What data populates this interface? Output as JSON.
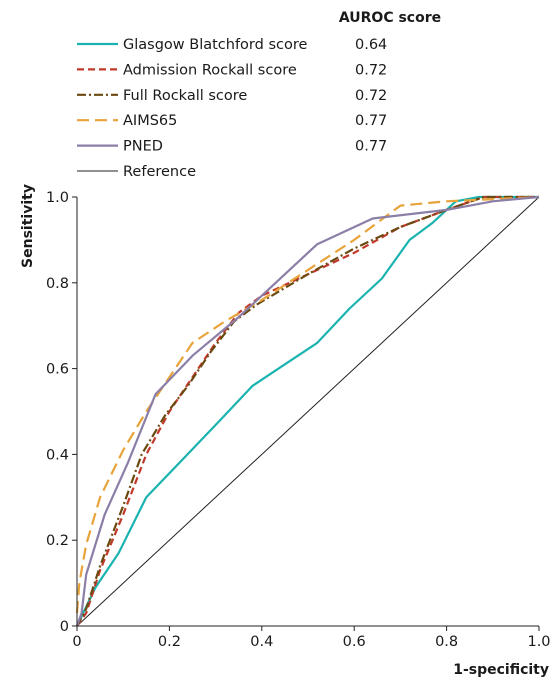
{
  "chart_data": {
    "type": "line",
    "title": "",
    "xlabel": "1-specificity",
    "ylabel": "Sensitivity",
    "xlim": [
      0,
      1.0
    ],
    "ylim": [
      0,
      1.0
    ],
    "x_ticks": [
      "0",
      "0.2",
      "0.4",
      "0.6",
      "0.8",
      "1.0"
    ],
    "y_ticks": [
      "0",
      "0.2",
      "0.4",
      "0.6",
      "0.8",
      "1.0"
    ],
    "grid": false,
    "legend_placement": "top",
    "legend_header": "AUROC score",
    "series": [
      {
        "name": "Glasgow Blatchford score",
        "auroc": "0.64",
        "color": "#1ab3b0",
        "dash": "solid",
        "points": [
          [
            0,
            0
          ],
          [
            0.04,
            0.09
          ],
          [
            0.09,
            0.17
          ],
          [
            0.15,
            0.3
          ],
          [
            0.23,
            0.39
          ],
          [
            0.31,
            0.48
          ],
          [
            0.38,
            0.56
          ],
          [
            0.45,
            0.61
          ],
          [
            0.52,
            0.66
          ],
          [
            0.59,
            0.74
          ],
          [
            0.66,
            0.81
          ],
          [
            0.72,
            0.9
          ],
          [
            0.77,
            0.94
          ],
          [
            0.82,
            0.99
          ],
          [
            0.87,
            1.0
          ],
          [
            1.0,
            1.0
          ]
        ]
      },
      {
        "name": "Admission Rockall score",
        "auroc": "0.72",
        "color": "#c0392b",
        "dash": "dashed",
        "points": [
          [
            0,
            0
          ],
          [
            0.02,
            0.03
          ],
          [
            0.05,
            0.13
          ],
          [
            0.1,
            0.26
          ],
          [
            0.15,
            0.4
          ],
          [
            0.2,
            0.5
          ],
          [
            0.25,
            0.58
          ],
          [
            0.3,
            0.66
          ],
          [
            0.35,
            0.73
          ],
          [
            0.4,
            0.77
          ],
          [
            0.5,
            0.82
          ],
          [
            0.6,
            0.87
          ],
          [
            0.7,
            0.93
          ],
          [
            0.8,
            0.97
          ],
          [
            0.88,
            1.0
          ],
          [
            1.0,
            1.0
          ]
        ]
      },
      {
        "name": "Full Rockall score",
        "auroc": "0.72",
        "color": "#6b4a10",
        "dash": "dashdot",
        "points": [
          [
            0,
            0
          ],
          [
            0.02,
            0.04
          ],
          [
            0.05,
            0.14
          ],
          [
            0.1,
            0.28
          ],
          [
            0.14,
            0.4
          ],
          [
            0.19,
            0.49
          ],
          [
            0.24,
            0.56
          ],
          [
            0.29,
            0.64
          ],
          [
            0.34,
            0.71
          ],
          [
            0.39,
            0.75
          ],
          [
            0.5,
            0.82
          ],
          [
            0.6,
            0.88
          ],
          [
            0.7,
            0.93
          ],
          [
            0.8,
            0.97
          ],
          [
            0.88,
            1.0
          ],
          [
            1.0,
            1.0
          ]
        ]
      },
      {
        "name": "AIMS65",
        "auroc": "0.77",
        "color": "#e8a33a",
        "dash": "longdash",
        "points": [
          [
            0,
            0.03
          ],
          [
            0.005,
            0.1
          ],
          [
            0.02,
            0.19
          ],
          [
            0.05,
            0.3
          ],
          [
            0.1,
            0.41
          ],
          [
            0.15,
            0.5
          ],
          [
            0.2,
            0.58
          ],
          [
            0.25,
            0.66
          ],
          [
            0.32,
            0.71
          ],
          [
            0.4,
            0.76
          ],
          [
            0.5,
            0.83
          ],
          [
            0.6,
            0.9
          ],
          [
            0.7,
            0.98
          ],
          [
            0.8,
            0.99
          ],
          [
            1.0,
            1.0
          ]
        ]
      },
      {
        "name": "PNED",
        "auroc": "0.77",
        "color": "#8b7fa8",
        "dash": "solid",
        "points": [
          [
            0,
            0
          ],
          [
            0.01,
            0.03
          ],
          [
            0.02,
            0.12
          ],
          [
            0.06,
            0.26
          ],
          [
            0.11,
            0.38
          ],
          [
            0.17,
            0.54
          ],
          [
            0.25,
            0.63
          ],
          [
            0.35,
            0.72
          ],
          [
            0.4,
            0.77
          ],
          [
            0.52,
            0.89
          ],
          [
            0.64,
            0.95
          ],
          [
            0.8,
            0.97
          ],
          [
            0.9,
            0.99
          ],
          [
            1.0,
            1.0
          ]
        ]
      },
      {
        "name": "Reference",
        "auroc": "",
        "color": "#222222",
        "dash": "thin",
        "points": [
          [
            0,
            0
          ],
          [
            1.0,
            1.0
          ]
        ]
      }
    ]
  }
}
